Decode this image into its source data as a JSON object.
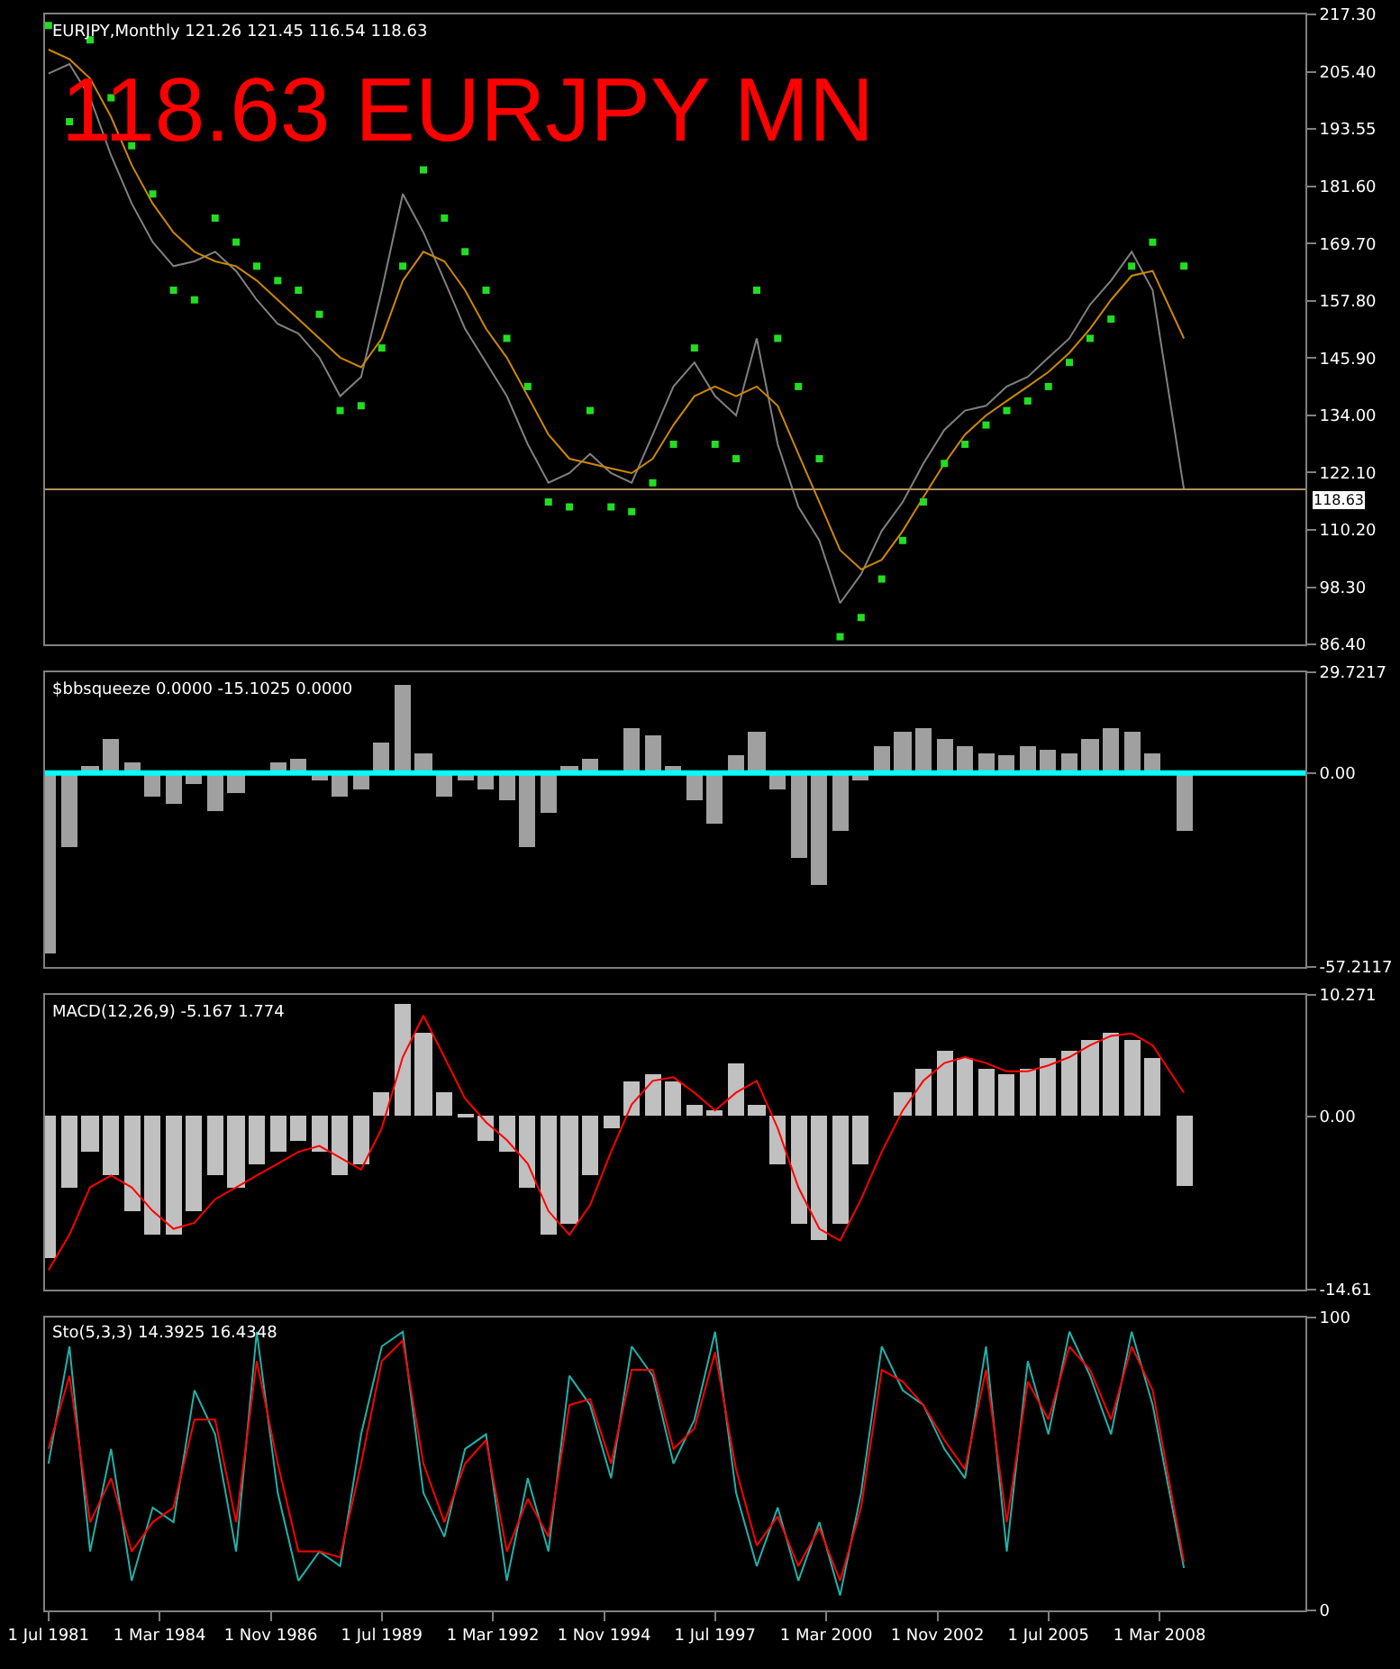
{
  "chart_data": [
    {
      "type": "line",
      "title": "EURJPY,Monthly 121.26 121.45 116.54 118.63",
      "annotations": [
        "118.63 EURJPY MN"
      ],
      "x": [
        "1981-07",
        "1982-01",
        "1982-07",
        "1983-01",
        "1983-07",
        "1984-01",
        "1984-07",
        "1985-01",
        "1985-07",
        "1986-01",
        "1986-07",
        "1987-01",
        "1987-07",
        "1988-01",
        "1988-07",
        "1989-01",
        "1989-07",
        "1990-01",
        "1990-07",
        "1991-01",
        "1991-07",
        "1992-01",
        "1992-07",
        "1993-01",
        "1993-07",
        "1994-01",
        "1994-07",
        "1995-01",
        "1995-07",
        "1996-01",
        "1996-07",
        "1997-01",
        "1997-07",
        "1998-01",
        "1998-07",
        "1999-01",
        "1999-07",
        "2000-01",
        "2000-07",
        "2001-01",
        "2001-07",
        "2002-01",
        "2002-07",
        "2003-01",
        "2003-07",
        "2004-01",
        "2004-07",
        "2005-01",
        "2005-07",
        "2006-01",
        "2006-07",
        "2007-01",
        "2007-07",
        "2008-01",
        "2008-10"
      ],
      "series": [
        {
          "color": "#808080",
          "values": [
            205,
            207,
            200,
            188,
            178,
            170,
            165,
            166,
            168,
            164,
            158,
            153,
            151,
            146,
            138,
            142,
            160,
            180,
            172,
            162,
            152,
            145,
            138,
            128,
            120,
            122,
            126,
            122,
            120,
            130,
            140,
            145,
            138,
            134,
            150,
            128,
            115,
            108,
            95,
            101,
            110,
            116,
            124,
            131,
            135,
            136,
            140,
            142,
            146,
            150,
            157,
            162,
            168,
            160,
            118.63
          ]
        },
        {
          "color": "#cc8800",
          "values": [
            210,
            208,
            204,
            196,
            186,
            178,
            172,
            168,
            166,
            165,
            162,
            158,
            154,
            150,
            146,
            144,
            150,
            162,
            168,
            166,
            160,
            152,
            146,
            138,
            130,
            125,
            124,
            123,
            122,
            125,
            132,
            138,
            140,
            138,
            140,
            136,
            126,
            116,
            106,
            102,
            104,
            110,
            117,
            124,
            130,
            134,
            137,
            140,
            143,
            147,
            152,
            158,
            163,
            164,
            150
          ]
        },
        {
          "type": "scatter",
          "marker": "square",
          "color": "#22dd22",
          "values": [
            215,
            195,
            212,
            200,
            190,
            180,
            160,
            158,
            175,
            170,
            165,
            162,
            160,
            155,
            135,
            136,
            148,
            165,
            185,
            175,
            168,
            160,
            150,
            140,
            116,
            115,
            135,
            115,
            114,
            120,
            128,
            148,
            128,
            125,
            160,
            150,
            140,
            125,
            88,
            92,
            100,
            108,
            116,
            124,
            128,
            132,
            135,
            137,
            140,
            145,
            150,
            154,
            165,
            170,
            165
          ]
        }
      ],
      "xlim": [
        "1981-06",
        "2011-09"
      ],
      "ylim": [
        86.4,
        217.3
      ],
      "yticks": [
        {
          "value": 217.3,
          "label": "217.30"
        },
        {
          "value": 205.4,
          "label": "205.40"
        },
        {
          "value": 193.55,
          "label": "193.55"
        },
        {
          "value": 181.6,
          "label": "181.60"
        },
        {
          "value": 169.7,
          "label": "169.70"
        },
        {
          "value": 157.8,
          "label": "157.80"
        },
        {
          "value": 145.9,
          "label": "145.90"
        },
        {
          "value": 134.0,
          "label": "134.00"
        },
        {
          "value": 122.1,
          "label": "122.10"
        },
        {
          "value": 110.2,
          "label": "110.20"
        },
        {
          "value": 98.3,
          "label": "98.30"
        },
        {
          "value": 86.4,
          "label": "86.40"
        }
      ],
      "ref_lines": [
        {
          "axis": "y",
          "value": 118.63,
          "label": "118.63",
          "color": "#b09060"
        }
      ],
      "tick_labels": "y",
      "grid": false
    },
    {
      "type": "bar",
      "title": "$bbsqueeze 0.0000 -15.1025 0.0000",
      "color": "#a0a0a0",
      "x": [
        "1981-07",
        "1982-01",
        "1982-07",
        "1983-01",
        "1983-07",
        "1984-01",
        "1984-07",
        "1985-01",
        "1985-07",
        "1986-01",
        "1986-07",
        "1987-01",
        "1987-07",
        "1988-01",
        "1988-07",
        "1989-01",
        "1989-07",
        "1990-01",
        "1990-07",
        "1991-01",
        "1991-07",
        "1992-01",
        "1992-07",
        "1993-01",
        "1993-07",
        "1994-01",
        "1994-07",
        "1995-01",
        "1995-07",
        "1996-01",
        "1996-07",
        "1997-01",
        "1997-07",
        "1998-01",
        "1998-07",
        "1999-01",
        "1999-07",
        "2000-01",
        "2000-07",
        "2001-01",
        "2001-07",
        "2002-01",
        "2002-07",
        "2003-01",
        "2003-07",
        "2004-01",
        "2004-07",
        "2005-01",
        "2005-07",
        "2006-01",
        "2006-07",
        "2007-01",
        "2007-07",
        "2008-01",
        "2008-10"
      ],
      "values": [
        -53,
        -22,
        2,
        10,
        3,
        -7,
        -9,
        -3,
        -11,
        -6,
        0,
        3,
        4,
        -2,
        -7,
        -5,
        9,
        26,
        6,
        -7,
        -2,
        -5,
        -8,
        -22,
        -12,
        2,
        4,
        0,
        13,
        11,
        2,
        -8,
        -15,
        5,
        12,
        -5,
        -25,
        -33,
        -17,
        -2,
        8,
        12,
        13,
        10,
        8,
        6,
        5,
        8,
        7,
        6,
        10,
        13,
        12,
        6,
        -17
      ],
      "xlim": [
        "1981-06",
        "2011-09"
      ],
      "ylim": [
        -57.2117,
        29.7217
      ],
      "yticks": [
        {
          "value": 29.7217,
          "label": "29.7217"
        },
        {
          "value": 0,
          "label": "0.00"
        },
        {
          "value": -57.2117,
          "label": "-57.2117"
        }
      ],
      "ref_lines": [
        {
          "axis": "y",
          "value": 0,
          "color": "#00ffff"
        }
      ],
      "tick_labels": "y",
      "grid": false
    },
    {
      "type": "bar",
      "title": "MACD(12,26,9) -5.167 1.774",
      "x": [
        "1981-07",
        "1982-01",
        "1982-07",
        "1983-01",
        "1983-07",
        "1984-01",
        "1984-07",
        "1985-01",
        "1985-07",
        "1986-01",
        "1986-07",
        "1987-01",
        "1987-07",
        "1988-01",
        "1988-07",
        "1989-01",
        "1989-07",
        "1990-01",
        "1990-07",
        "1991-01",
        "1991-07",
        "1992-01",
        "1992-07",
        "1993-01",
        "1993-07",
        "1994-01",
        "1994-07",
        "1995-01",
        "1995-07",
        "1996-01",
        "1996-07",
        "1997-01",
        "1997-07",
        "1998-01",
        "1998-07",
        "1999-01",
        "1999-07",
        "2000-01",
        "2000-07",
        "2001-01",
        "2001-07",
        "2002-01",
        "2002-07",
        "2003-01",
        "2003-07",
        "2004-01",
        "2004-07",
        "2005-01",
        "2005-07",
        "2006-01",
        "2006-07",
        "2007-01",
        "2007-07",
        "2008-01",
        "2008-10"
      ],
      "series": [
        {
          "color": "#c0c0c0",
          "values": [
            -12,
            -6,
            -3,
            -5,
            -8,
            -10,
            -10,
            -8,
            -5,
            -6,
            -4,
            -3,
            -2,
            -3,
            -5,
            -4,
            2,
            9.5,
            7,
            2,
            0.3,
            -2,
            -3,
            -6,
            -10,
            -9,
            -5,
            -1,
            3,
            3.5,
            3,
            1,
            0.5,
            4.5,
            1,
            -4,
            -9,
            -10.4,
            -9,
            -4,
            0,
            2,
            4,
            5.5,
            5,
            4,
            3.5,
            4,
            5,
            5.5,
            6.5,
            7,
            6.5,
            5,
            -5.8
          ]
        },
        {
          "type": "line",
          "color": "#ff0000",
          "values": [
            -13,
            -10,
            -6,
            -5,
            -6,
            -8,
            -9.5,
            -9,
            -7,
            -6,
            -5,
            -4,
            -3,
            -2.5,
            -3.5,
            -4.5,
            -1,
            5,
            8.5,
            5,
            1.5,
            -0.5,
            -2,
            -4,
            -8,
            -10,
            -7.5,
            -3,
            1,
            3,
            3.3,
            2,
            0.5,
            2,
            3,
            -1,
            -6,
            -9.5,
            -10.5,
            -7,
            -3,
            0.5,
            3,
            4.5,
            5,
            4.5,
            3.8,
            3.8,
            4.3,
            5,
            6,
            6.8,
            7,
            6,
            2
          ]
        }
      ],
      "xlim": [
        "1981-06",
        "2011-09"
      ],
      "ylim": [
        -14.61,
        10.271
      ],
      "yticks": [
        {
          "value": 10.271,
          "label": "10.271"
        },
        {
          "value": 0,
          "label": "0.00"
        },
        {
          "value": -14.61,
          "label": "-14.61"
        }
      ],
      "tick_labels": "y",
      "grid": false
    },
    {
      "type": "line",
      "title": "Sto(5,3,3) 14.3925 16.4348",
      "x": [
        "1981-07",
        "1982-01",
        "1982-07",
        "1983-01",
        "1983-07",
        "1984-01",
        "1984-07",
        "1985-01",
        "1985-07",
        "1986-01",
        "1986-07",
        "1987-01",
        "1987-07",
        "1988-01",
        "1988-07",
        "1989-01",
        "1989-07",
        "1990-01",
        "1990-07",
        "1991-01",
        "1991-07",
        "1992-01",
        "1992-07",
        "1993-01",
        "1993-07",
        "1994-01",
        "1994-07",
        "1995-01",
        "1995-07",
        "1996-01",
        "1996-07",
        "1997-01",
        "1997-07",
        "1998-01",
        "1998-07",
        "1999-01",
        "1999-07",
        "2000-01",
        "2000-07",
        "2001-01",
        "2001-07",
        "2002-01",
        "2002-07",
        "2003-01",
        "2003-07",
        "2004-01",
        "2004-07",
        "2005-01",
        "2005-07",
        "2006-01",
        "2006-07",
        "2007-01",
        "2007-07",
        "2008-01",
        "2008-10"
      ],
      "series": [
        {
          "color": "#20b2aa",
          "values": [
            50,
            90,
            20,
            55,
            10,
            35,
            30,
            75,
            60,
            20,
            95,
            40,
            10,
            20,
            15,
            60,
            90,
            95,
            40,
            25,
            55,
            60,
            10,
            45,
            20,
            80,
            70,
            45,
            90,
            80,
            50,
            65,
            95,
            40,
            15,
            35,
            10,
            30,
            5,
            40,
            90,
            75,
            70,
            55,
            45,
            90,
            20,
            85,
            60,
            95,
            80,
            60,
            95,
            70,
            14.3925
          ]
        },
        {
          "color": "#ff0000",
          "values": [
            55,
            80,
            30,
            45,
            20,
            30,
            35,
            65,
            65,
            30,
            85,
            50,
            20,
            20,
            18,
            50,
            85,
            92,
            50,
            30,
            50,
            58,
            20,
            38,
            25,
            70,
            72,
            50,
            82,
            82,
            55,
            62,
            88,
            48,
            22,
            32,
            15,
            28,
            10,
            35,
            82,
            78,
            70,
            58,
            48,
            82,
            30,
            78,
            65,
            90,
            82,
            65,
            90,
            75,
            16.4348
          ]
        }
      ],
      "xlim": [
        "1981-06",
        "2011-09"
      ],
      "ylim": [
        0,
        100
      ],
      "yticks": [
        0,
        100
      ],
      "xticks": [
        {
          "value": "1981-07-01",
          "label": "1 Jul 1981"
        },
        {
          "value": "1984-03-01",
          "label": "1 Mar 1984"
        },
        {
          "value": "1986-11-01",
          "label": "1 Nov 1986"
        },
        {
          "value": "1989-07-01",
          "label": "1 Jul 1989"
        },
        {
          "value": "1992-03-01",
          "label": "1 Mar 1992"
        },
        {
          "value": "1994-11-01",
          "label": "1 Nov 1994"
        },
        {
          "value": "1997-07-01",
          "label": "1 Jul 1997"
        },
        {
          "value": "2000-03-01",
          "label": "1 Mar 2000"
        },
        {
          "value": "2002-11-01",
          "label": "1 Nov 2002"
        },
        {
          "value": "2005-07-01",
          "label": "1 Jul 2005"
        },
        {
          "value": "2008-03-01",
          "label": "1 Mar 2008"
        }
      ],
      "grid": false
    }
  ]
}
